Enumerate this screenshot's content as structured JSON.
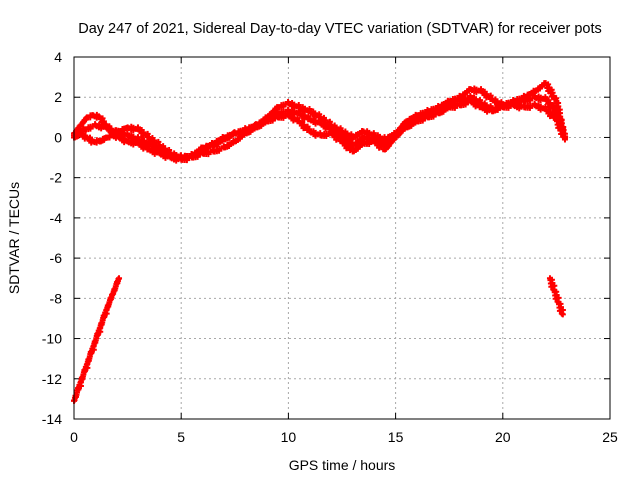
{
  "chart_data": {
    "type": "scatter",
    "title": "Day 247 of 2021, Sidereal Day-to-day VTEC variation (SDTVAR) for receiver pots",
    "xlabel": "GPS time / hours",
    "ylabel": "SDTVAR / TECUs",
    "xlim": [
      0,
      25
    ],
    "ylim": [
      -14,
      4
    ],
    "x_ticks": [
      0,
      5,
      10,
      15,
      20,
      25
    ],
    "y_ticks": [
      4,
      2,
      0,
      -2,
      -4,
      -6,
      -8,
      -10,
      -12,
      -14
    ],
    "grid": true,
    "marker_color": "#ff0000",
    "series": [
      {
        "name": "satellite-arc-a",
        "x": [
          0.0,
          0.3,
          0.6,
          0.9,
          1.2,
          1.5,
          1.8,
          2.1,
          2.5,
          3.0,
          3.5,
          4.0,
          4.5,
          5.0,
          5.5,
          6.0,
          6.5,
          7.0,
          7.5,
          8.0,
          8.5,
          9.0,
          9.5,
          10.0,
          10.5,
          11.0,
          11.5,
          12.0,
          12.5,
          13.0,
          13.5,
          14.0,
          14.5,
          15.0,
          15.5,
          16.0,
          16.5,
          17.0,
          17.5,
          18.0,
          18.5,
          19.0,
          19.5,
          20.0,
          20.5,
          21.0,
          21.5,
          22.0,
          22.5,
          22.9
        ],
        "y": [
          0.2,
          0.6,
          1.0,
          1.1,
          1.0,
          0.6,
          0.3,
          0.3,
          0.5,
          0.4,
          0.0,
          -0.4,
          -0.8,
          -1.0,
          -0.9,
          -0.6,
          -0.3,
          0.0,
          0.2,
          0.4,
          0.6,
          1.0,
          1.5,
          1.7,
          1.5,
          1.3,
          1.0,
          0.6,
          0.3,
          0.0,
          0.3,
          0.1,
          -0.1,
          0.2,
          0.8,
          1.1,
          1.3,
          1.5,
          1.8,
          2.0,
          2.4,
          2.3,
          1.9,
          1.6,
          1.8,
          2.0,
          2.3,
          2.7,
          1.8,
          0.0
        ]
      },
      {
        "name": "satellite-arc-b",
        "x": [
          0.0,
          0.3,
          0.6,
          0.9,
          1.2,
          1.5,
          1.8,
          2.1,
          2.5,
          3.0,
          3.5,
          4.0,
          4.5,
          5.0,
          5.5,
          6.0,
          6.5,
          7.0,
          7.5,
          8.0,
          8.5,
          9.0,
          9.5,
          10.0,
          10.5,
          11.0,
          11.5,
          12.0,
          12.5,
          13.0,
          13.5,
          14.0,
          14.5,
          15.0,
          15.5,
          16.0,
          16.5,
          17.0,
          17.5,
          18.0,
          18.5,
          19.0,
          19.5,
          20.0,
          20.5,
          21.0,
          21.5,
          22.0,
          22.5,
          22.9
        ],
        "y": [
          0.0,
          0.2,
          0.0,
          -0.2,
          -0.2,
          0.0,
          0.1,
          0.0,
          -0.2,
          -0.3,
          -0.6,
          -0.8,
          -1.0,
          -1.1,
          -1.0,
          -0.8,
          -0.7,
          -0.5,
          -0.2,
          0.2,
          0.5,
          0.8,
          1.0,
          1.1,
          0.8,
          0.3,
          0.1,
          0.2,
          -0.2,
          -0.7,
          -0.3,
          -0.2,
          -0.6,
          0.0,
          0.6,
          0.9,
          1.2,
          1.3,
          1.7,
          1.8,
          2.0,
          1.7,
          1.4,
          1.5,
          1.6,
          1.5,
          1.6,
          1.4,
          0.9,
          -0.1
        ]
      },
      {
        "name": "satellite-arc-c",
        "x": [
          0.0,
          0.5,
          1.0,
          1.5,
          2.0,
          2.5,
          3.0,
          3.5,
          4.0,
          4.5,
          5.0,
          5.5,
          6.0,
          6.5,
          7.0,
          7.5,
          8.0,
          8.5,
          9.0,
          9.5,
          10.0,
          10.5,
          11.0,
          11.5,
          12.0,
          12.5,
          13.0,
          13.5,
          14.0,
          14.5,
          15.0,
          15.5,
          16.0,
          16.5,
          17.0,
          17.5,
          18.0,
          18.5,
          19.0,
          19.5,
          20.0,
          20.5,
          21.0,
          21.5,
          22.0,
          22.5,
          22.8
        ],
        "y": [
          0.1,
          0.4,
          0.6,
          0.5,
          0.2,
          0.1,
          -0.1,
          -0.3,
          -0.6,
          -0.9,
          -1.0,
          -0.9,
          -0.5,
          -0.4,
          -0.1,
          0.2,
          0.3,
          0.6,
          0.9,
          1.2,
          1.3,
          1.2,
          0.9,
          0.7,
          0.4,
          0.1,
          -0.4,
          0.0,
          -0.1,
          -0.3,
          0.1,
          0.5,
          0.8,
          1.0,
          1.2,
          1.5,
          1.6,
          1.8,
          1.5,
          1.3,
          1.6,
          1.7,
          1.8,
          2.0,
          1.9,
          1.3,
          0.3
        ]
      },
      {
        "name": "rising-arc-left",
        "x": [
          0.0,
          0.3,
          0.6,
          0.9,
          1.2,
          1.5,
          1.8,
          2.1
        ],
        "y": [
          -13.1,
          -12.2,
          -11.3,
          -10.4,
          -9.5,
          -8.6,
          -7.8,
          -7.0
        ]
      },
      {
        "name": "falling-arc-right",
        "x": [
          22.2,
          22.4,
          22.6,
          22.8
        ],
        "y": [
          -7.0,
          -7.6,
          -8.2,
          -8.8
        ]
      }
    ]
  }
}
